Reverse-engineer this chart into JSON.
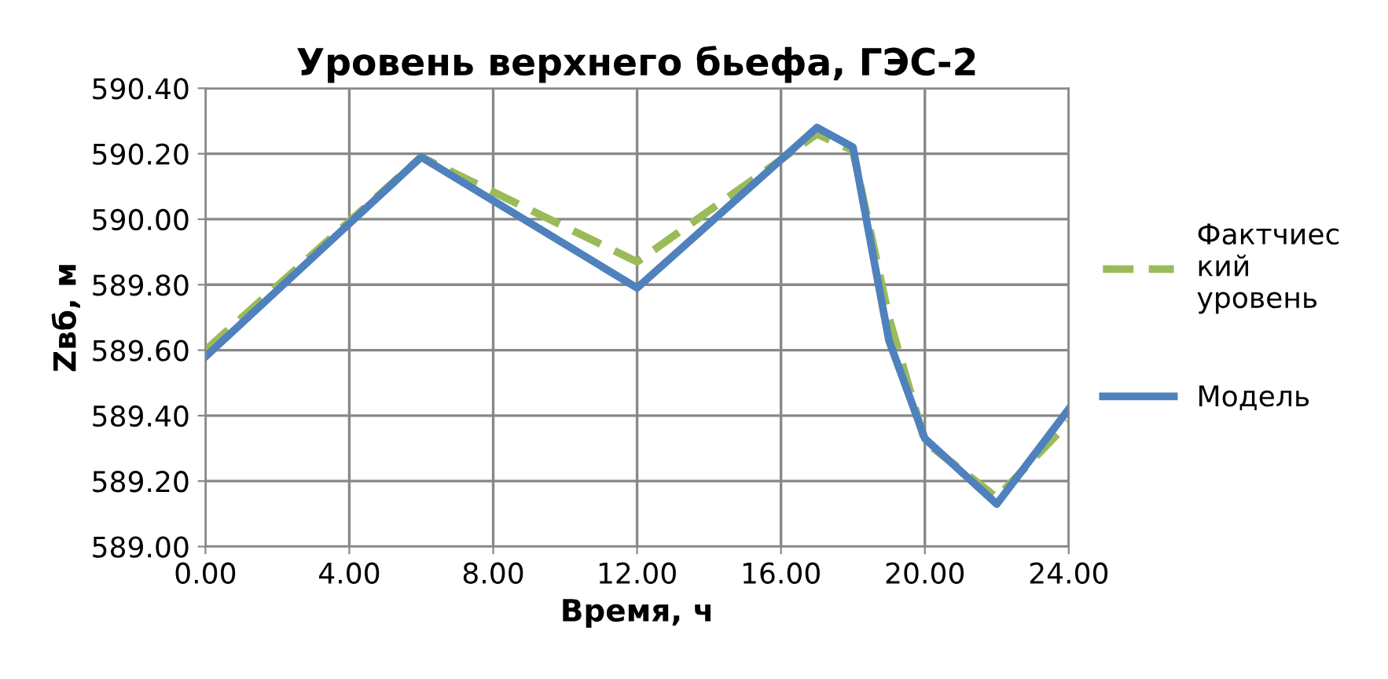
{
  "chart_data": {
    "type": "line",
    "title": "Уровень верхнего бьефа, ГЭС-2",
    "xlabel": "Время, ч",
    "ylabel": "Zвб, м",
    "series": [
      {
        "name": "Фактчиеский уровень",
        "color": "#9bbb59",
        "line_style": "dashed",
        "x": [
          0,
          6,
          12,
          17,
          18,
          19,
          20,
          22,
          24
        ],
        "values": [
          589.6,
          590.19,
          589.87,
          590.26,
          590.21,
          589.7,
          589.32,
          589.15,
          589.38
        ]
      },
      {
        "name": "Модель",
        "color": "#4f81bd",
        "line_style": "solid",
        "x": [
          0,
          6,
          12,
          17,
          18,
          19,
          20,
          22,
          24
        ],
        "values": [
          589.58,
          590.19,
          589.79,
          590.28,
          590.22,
          589.63,
          589.33,
          589.13,
          589.42
        ]
      }
    ],
    "xlim": [
      0,
      24
    ],
    "xticks": [
      {
        "value": 0,
        "label": "0.00"
      },
      {
        "value": 4,
        "label": "4.00"
      },
      {
        "value": 8,
        "label": "8.00"
      },
      {
        "value": 12,
        "label": "12.00"
      },
      {
        "value": 16,
        "label": "16.00"
      },
      {
        "value": 20,
        "label": "20.00"
      },
      {
        "value": 24,
        "label": "24.00"
      }
    ],
    "ylim": [
      589.0,
      590.4
    ],
    "yticks": [
      {
        "value": 589.0,
        "label": "589.00"
      },
      {
        "value": 589.2,
        "label": "589.20"
      },
      {
        "value": 589.4,
        "label": "589.40"
      },
      {
        "value": 589.6,
        "label": "589.60"
      },
      {
        "value": 589.8,
        "label": "589.80"
      },
      {
        "value": 590.0,
        "label": "590.00"
      },
      {
        "value": 590.2,
        "label": "590.20"
      },
      {
        "value": 590.4,
        "label": "590.40"
      }
    ],
    "grid": true,
    "legend": "right",
    "marker": "none"
  }
}
